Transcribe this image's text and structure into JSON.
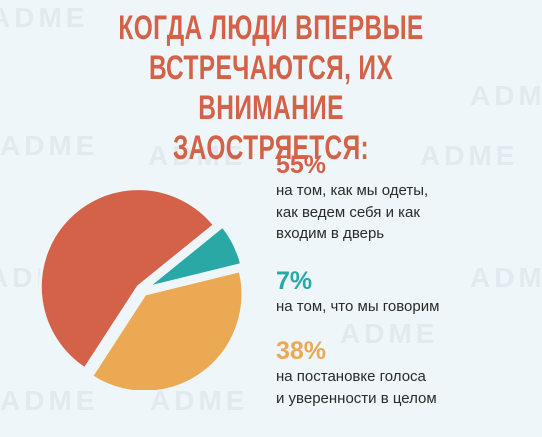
{
  "title": {
    "lines": [
      "КОГДА ЛЮДИ ВПЕРВЫЕ",
      "ВСТРЕЧАЮТСЯ, ИХ ВНИМАНИЕ",
      "ЗАОСТРЯЕТСЯ:"
    ],
    "color": "#d36248"
  },
  "watermark": "ADME",
  "chart_data": {
    "type": "pie",
    "title": "КОГДА ЛЮДИ ВПЕРВЫЕ ВСТРЕЧАЮТСЯ, ИХ ВНИМАНИЕ ЗАОСТРЯЕТСЯ:",
    "slices": [
      {
        "label": "на том, как мы одеты, как ведем себя и как входим в дверь",
        "value": 55,
        "display": "55%",
        "color": "#d36248"
      },
      {
        "label": "на том, что мы говорим",
        "value": 7,
        "display": "7%",
        "color": "#2aa8a6"
      },
      {
        "label": "на постановке голоса и уверенности в целом",
        "value": 38,
        "display": "38%",
        "color": "#eba953"
      }
    ],
    "legend_position": "right"
  },
  "legend": [
    {
      "pct": "55%",
      "desc": "на том, как мы одеты,\nкак ведем себя и как\nвходим в дверь",
      "color": "#d36248"
    },
    {
      "pct": "7%",
      "desc": "на том, что мы говорим",
      "color": "#2aa8a6"
    },
    {
      "pct": "38%",
      "desc": "на постановке голоса\nи уверенности в целом",
      "color": "#eba953"
    }
  ]
}
